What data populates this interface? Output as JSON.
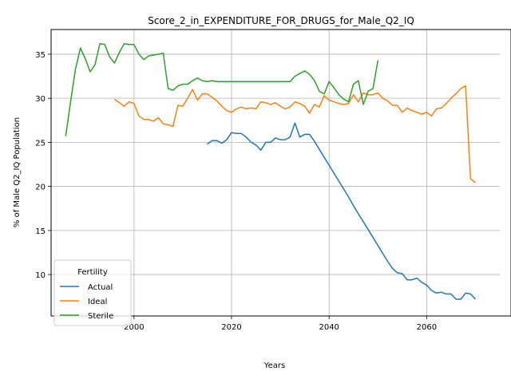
{
  "chart_data": {
    "type": "line",
    "title": "Score_2_in_EXPENDITURE_FOR_DRUGS_for_Male_Q2_IQ",
    "xlabel": "Years",
    "ylabel": "% of Male Q2_IQ Population",
    "xlim": [
      1983,
      2075
    ],
    "ylim": [
      5.3,
      37.8
    ],
    "xticks": [
      2000,
      2020,
      2040,
      2060
    ],
    "yticks": [
      10,
      15,
      20,
      25,
      30,
      35
    ],
    "grid": true,
    "legend": {
      "title": "Fertility",
      "placement": "lower-left"
    },
    "series": [
      {
        "name": "Actual",
        "color": "#1f77b4",
        "x": [
          2015,
          2016,
          2017,
          2018,
          2019,
          2020,
          2021,
          2022,
          2023,
          2024,
          2025,
          2026,
          2027,
          2028,
          2029,
          2030,
          2031,
          2032,
          2033,
          2034,
          2035,
          2036,
          2037,
          2038,
          2039,
          2040,
          2041,
          2042,
          2043,
          2044,
          2045,
          2046,
          2047,
          2048,
          2049,
          2050,
          2051,
          2052,
          2053,
          2054,
          2055,
          2056,
          2057,
          2058,
          2059,
          2060,
          2061,
          2062,
          2063,
          2064,
          2065,
          2066,
          2067,
          2068,
          2069,
          2070
        ],
        "y": [
          24.8,
          25.2,
          25.2,
          24.9,
          25.3,
          26.1,
          26.0,
          26.0,
          25.6,
          25.0,
          24.7,
          24.1,
          25.0,
          25.0,
          25.5,
          25.3,
          25.3,
          25.6,
          27.2,
          25.6,
          25.9,
          25.9,
          25.1,
          24.2,
          23.3,
          22.4,
          21.5,
          20.6,
          19.7,
          18.8,
          17.8,
          16.9,
          16.0,
          15.1,
          14.2,
          13.3,
          12.4,
          11.5,
          10.7,
          10.2,
          10.1,
          9.4,
          9.4,
          9.6,
          9.1,
          8.8,
          8.2,
          7.9,
          8.0,
          7.8,
          7.8,
          7.2,
          7.2,
          7.9,
          7.8,
          7.2
        ]
      },
      {
        "name": "Ideal",
        "color": "#ff7f0e",
        "x": [
          1996,
          1997,
          1998,
          1999,
          2000,
          2001,
          2002,
          2003,
          2004,
          2005,
          2006,
          2007,
          2008,
          2009,
          2010,
          2011,
          2012,
          2013,
          2014,
          2015,
          2016,
          2017,
          2018,
          2019,
          2020,
          2021,
          2022,
          2023,
          2024,
          2025,
          2026,
          2027,
          2028,
          2029,
          2030,
          2031,
          2032,
          2033,
          2034,
          2035,
          2036,
          2037,
          2038,
          2039,
          2040,
          2041,
          2042,
          2043,
          2044,
          2045,
          2046,
          2047,
          2048,
          2049,
          2050,
          2051,
          2052,
          2053,
          2054,
          2055,
          2056,
          2057,
          2058,
          2059,
          2060,
          2061,
          2062,
          2063,
          2064,
          2065,
          2066,
          2067,
          2068,
          2069,
          2070
        ],
        "y": [
          29.9,
          29.5,
          29.1,
          29.6,
          29.4,
          28.0,
          27.6,
          27.6,
          27.4,
          27.8,
          27.1,
          27.0,
          26.8,
          29.2,
          29.1,
          30.0,
          31.0,
          29.8,
          30.5,
          30.5,
          30.1,
          29.7,
          29.1,
          28.6,
          28.4,
          28.8,
          29.0,
          28.8,
          28.9,
          28.8,
          29.6,
          29.5,
          29.3,
          29.5,
          29.1,
          28.8,
          29.0,
          29.6,
          29.4,
          29.1,
          28.3,
          29.3,
          29.0,
          30.3,
          29.8,
          29.6,
          29.4,
          29.3,
          29.4,
          30.4,
          29.6,
          30.6,
          30.4,
          30.4,
          30.6,
          30.0,
          29.7,
          29.2,
          29.2,
          28.4,
          28.9,
          28.6,
          28.4,
          28.2,
          28.4,
          28.0,
          28.8,
          28.9,
          29.4,
          30.0,
          30.5,
          31.1,
          31.4,
          20.9,
          20.4
        ]
      },
      {
        "name": "Sterile",
        "color": "#2ca02c",
        "x": [
          1986,
          1987,
          1988,
          1989,
          1990,
          1991,
          1992,
          1993,
          1994,
          1995,
          1996,
          1997,
          1998,
          1999,
          2000,
          2001,
          2002,
          2003,
          2004,
          2005,
          2006,
          2007,
          2008,
          2009,
          2010,
          2011,
          2012,
          2013,
          2014,
          2015,
          2016,
          2017,
          2018,
          2019,
          2020,
          2021,
          2022,
          2023,
          2024,
          2025,
          2026,
          2027,
          2028,
          2029,
          2030,
          2031,
          2032,
          2033,
          2034,
          2035,
          2036,
          2037,
          2038,
          2039,
          2040,
          2041,
          2042,
          2043,
          2044,
          2045,
          2046,
          2047,
          2048,
          2049,
          2050
        ],
        "y": [
          25.7,
          29.6,
          33.3,
          35.7,
          34.5,
          33.0,
          33.8,
          36.2,
          36.1,
          34.7,
          34.0,
          35.2,
          36.2,
          36.1,
          36.1,
          35.0,
          34.4,
          34.8,
          34.9,
          35.0,
          35.1,
          31.1,
          30.9,
          31.4,
          31.6,
          31.6,
          32.0,
          32.3,
          32.0,
          31.9,
          32.0,
          31.9,
          31.9,
          31.9,
          31.9,
          31.9,
          31.9,
          31.9,
          31.9,
          31.9,
          31.9,
          31.9,
          31.9,
          31.9,
          31.9,
          31.9,
          31.9,
          32.5,
          32.8,
          33.1,
          32.7,
          32.0,
          30.8,
          30.5,
          31.9,
          31.2,
          30.4,
          29.9,
          29.6,
          31.6,
          32.0,
          29.3,
          30.8,
          31.1,
          34.3
        ]
      }
    ]
  }
}
